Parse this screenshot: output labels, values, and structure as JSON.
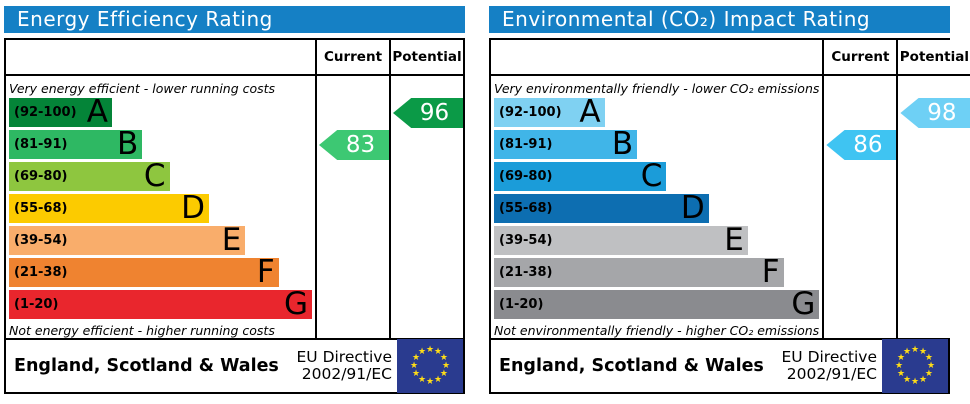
{
  "colors": {
    "titlebar_blue": "#1580c5",
    "border_black": "#000000",
    "flag_blue": "#2a3b8f",
    "star_yellow": "#ffdd17",
    "star_glyph": "★"
  },
  "panels": [
    {
      "title": "Energy Efficiency Rating",
      "columns": {
        "current": "Current",
        "potential": "Potential"
      },
      "top_caption": "Very energy efficient - lower running costs",
      "bottom_caption": "Not energy efficient - higher running costs",
      "bands": [
        {
          "letter": "A",
          "range": "(92-100)",
          "color": "#048438",
          "width_pct": 34
        },
        {
          "letter": "B",
          "range": "(81-91)",
          "color": "#2eb863",
          "width_pct": 44
        },
        {
          "letter": "C",
          "range": "(69-80)",
          "color": "#8ec63f",
          "width_pct": 53
        },
        {
          "letter": "D",
          "range": "(55-68)",
          "color": "#fccb00",
          "width_pct": 66
        },
        {
          "letter": "E",
          "range": "(39-54)",
          "color": "#f9ad6b",
          "width_pct": 78
        },
        {
          "letter": "F",
          "range": "(21-38)",
          "color": "#ef8330",
          "width_pct": 89
        },
        {
          "letter": "G",
          "range": "(1-20)",
          "color": "#e9262d",
          "width_pct": 100
        }
      ],
      "current": {
        "value": "83",
        "band": "B",
        "band_index": 1,
        "color": "#3dc873"
      },
      "potential": {
        "value": "96",
        "band": "A",
        "band_index": 0,
        "color": "#0b9a47"
      },
      "footer": {
        "region": "England, Scotland & Wales",
        "directive_line1": "EU Directive",
        "directive_line2": "2002/91/EC"
      }
    },
    {
      "title": "Environmental (CO₂) Impact Rating",
      "columns": {
        "current": "Current",
        "potential": "Potential"
      },
      "top_caption": "Very environmentally friendly - lower CO₂ emissions",
      "bottom_caption": "Not environmentally friendly - higher CO₂ emissions",
      "bands": [
        {
          "letter": "A",
          "range": "(92-100)",
          "color": "#7fd1f2",
          "width_pct": 34
        },
        {
          "letter": "B",
          "range": "(81-91)",
          "color": "#40b5e8",
          "width_pct": 44
        },
        {
          "letter": "C",
          "range": "(69-80)",
          "color": "#1b9cd9",
          "width_pct": 53
        },
        {
          "letter": "D",
          "range": "(55-68)",
          "color": "#0d6eb1",
          "width_pct": 66
        },
        {
          "letter": "E",
          "range": "(39-54)",
          "color": "#bfc0c2",
          "width_pct": 78
        },
        {
          "letter": "F",
          "range": "(21-38)",
          "color": "#a5a6a9",
          "width_pct": 89
        },
        {
          "letter": "G",
          "range": "(1-20)",
          "color": "#8a8b8f",
          "width_pct": 100
        }
      ],
      "current": {
        "value": "86",
        "band": "B",
        "band_index": 1,
        "color": "#3fc4f2"
      },
      "potential": {
        "value": "98",
        "band": "A",
        "band_index": 0,
        "color": "#6ed0f5"
      },
      "footer": {
        "region": "England, Scotland & Wales",
        "directive_line1": "EU Directive",
        "directive_line2": "2002/91/EC"
      }
    }
  ],
  "chart_data": [
    {
      "type": "bar",
      "title": "Energy Efficiency Rating",
      "orientation": "horizontal",
      "categories": [
        "A (92-100)",
        "B (81-91)",
        "C (69-80)",
        "D (55-68)",
        "E (39-54)",
        "F (21-38)",
        "G (1-20)"
      ],
      "band_bar_lengths_pct": [
        34,
        44,
        53,
        66,
        78,
        89,
        100
      ],
      "value_range": [
        1,
        100
      ],
      "series": [
        {
          "name": "Current",
          "values": [
            83
          ],
          "band": "B"
        },
        {
          "name": "Potential",
          "values": [
            96
          ],
          "band": "A"
        }
      ],
      "annotations": [
        "Very energy efficient - lower running costs",
        "Not energy efficient - higher running costs",
        "England, Scotland & Wales",
        "EU Directive 2002/91/EC"
      ]
    },
    {
      "type": "bar",
      "title": "Environmental (CO₂) Impact Rating",
      "orientation": "horizontal",
      "categories": [
        "A (92-100)",
        "B (81-91)",
        "C (69-80)",
        "D (55-68)",
        "E (39-54)",
        "F (21-38)",
        "G (1-20)"
      ],
      "band_bar_lengths_pct": [
        34,
        44,
        53,
        66,
        78,
        89,
        100
      ],
      "value_range": [
        1,
        100
      ],
      "series": [
        {
          "name": "Current",
          "values": [
            86
          ],
          "band": "B"
        },
        {
          "name": "Potential",
          "values": [
            98
          ],
          "band": "A"
        }
      ],
      "annotations": [
        "Very environmentally friendly - lower CO₂ emissions",
        "Not environmentally friendly - higher CO₂ emissions",
        "England, Scotland & Wales",
        "EU Directive 2002/91/EC"
      ]
    }
  ]
}
